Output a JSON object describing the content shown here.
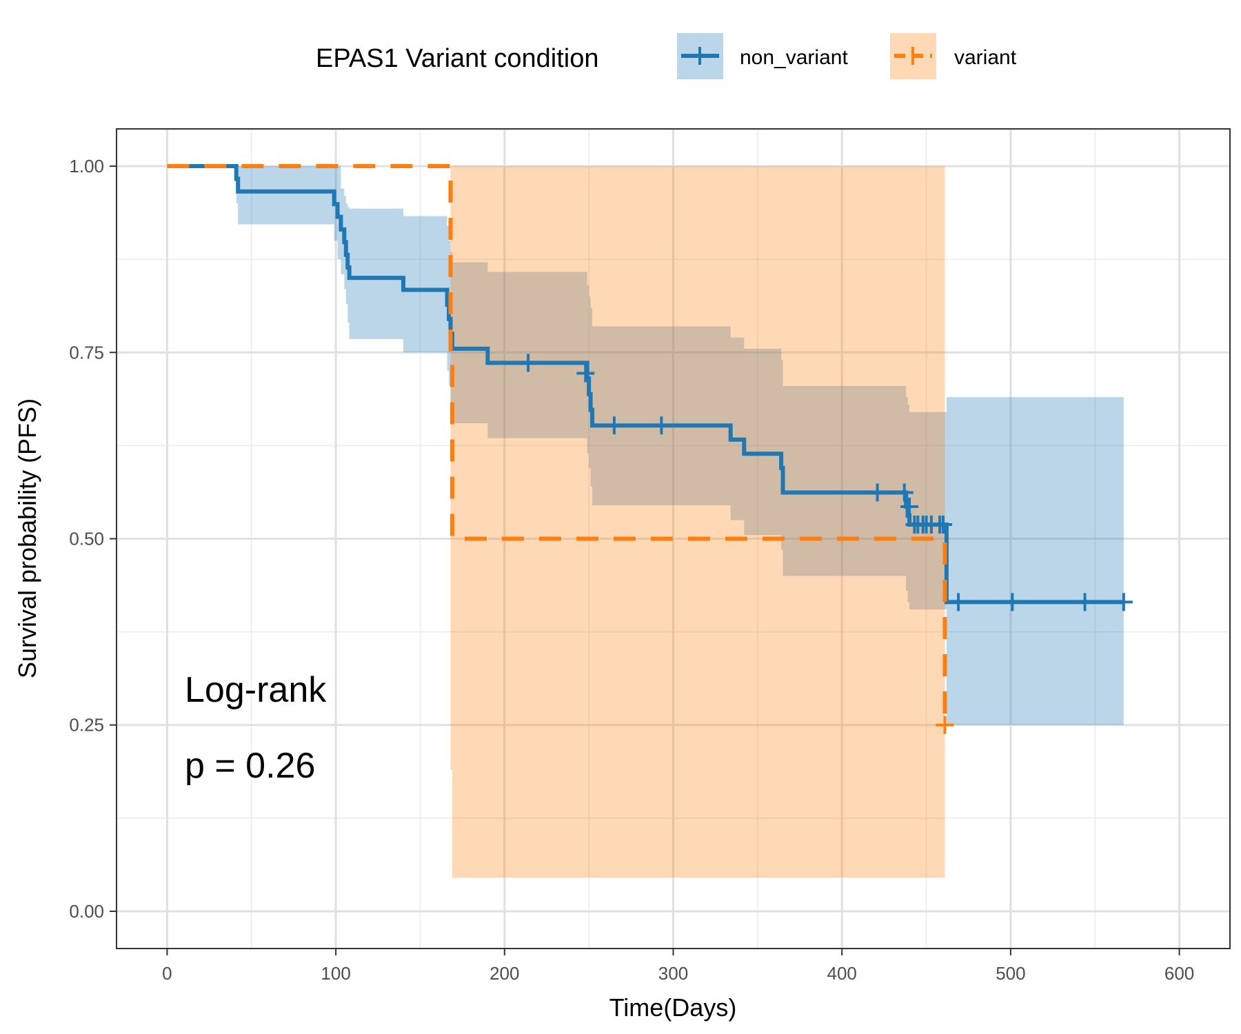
{
  "chart_data": {
    "type": "line",
    "subtype": "kaplan-meier",
    "xlabel": "Time(Days)",
    "ylabel": "Survival probability (PFS)",
    "xlim": [
      -30,
      630
    ],
    "ylim": [
      -0.05,
      1.05
    ],
    "x_ticks": [
      0,
      100,
      200,
      300,
      400,
      500,
      600
    ],
    "x_tick_labels": [
      "0",
      "100",
      "200",
      "300",
      "400",
      "500",
      "600"
    ],
    "y_ticks": [
      0,
      0.25,
      0.5,
      0.75,
      1.0
    ],
    "y_tick_labels": [
      "0.00",
      "0.25",
      "0.50",
      "0.75",
      "1.00"
    ],
    "grid": true,
    "legend": {
      "title": "EPAS1 Variant condition",
      "placement": "top",
      "entries": [
        "non_variant",
        "variant"
      ]
    },
    "annotations": [
      "Log-rank",
      "p = 0.26"
    ],
    "series": [
      {
        "name": "non_variant",
        "color": "#1f77b4",
        "line_style": "solid",
        "x": [
          0,
          40,
          41,
          42,
          97,
          99,
          101,
          103,
          105,
          106,
          107,
          108,
          140,
          165,
          166,
          167,
          168,
          169,
          190,
          247,
          249,
          250,
          251,
          252,
          330,
          334,
          342,
          362,
          364,
          365,
          437,
          438,
          439,
          440,
          441,
          442,
          461,
          462,
          567
        ],
        "y": [
          1.0,
          1.0,
          0.983,
          0.966,
          0.966,
          0.949,
          0.932,
          0.915,
          0.898,
          0.881,
          0.864,
          0.85,
          0.834,
          0.834,
          0.814,
          0.795,
          0.775,
          0.755,
          0.736,
          0.736,
          0.715,
          0.694,
          0.673,
          0.652,
          0.652,
          0.633,
          0.614,
          0.614,
          0.595,
          0.562,
          0.562,
          0.543,
          0.531,
          0.519,
          0.519,
          0.519,
          0.519,
          0.415,
          0.415
        ],
        "ci_x": [
          0,
          40,
          41,
          42,
          97,
          99,
          101,
          103,
          105,
          106,
          107,
          108,
          140,
          165,
          166,
          167,
          168,
          169,
          190,
          247,
          249,
          250,
          251,
          252,
          330,
          334,
          342,
          362,
          364,
          365,
          437,
          438,
          439,
          440,
          441,
          442,
          461,
          462,
          567
        ],
        "ci_upper": [
          1.0,
          1.0,
          1.0,
          1.0,
          1.0,
          1.0,
          1.0,
          0.97,
          0.96,
          0.95,
          0.945,
          0.943,
          0.933,
          0.933,
          0.92,
          0.9,
          0.885,
          0.871,
          0.858,
          0.858,
          0.84,
          0.825,
          0.81,
          0.785,
          0.785,
          0.77,
          0.755,
          0.755,
          0.74,
          0.705,
          0.705,
          0.69,
          0.68,
          0.67,
          0.67,
          0.67,
          0.67,
          0.69,
          0.69
        ],
        "ci_lower": [
          1.0,
          1.0,
          0.95,
          0.922,
          0.922,
          0.9,
          0.875,
          0.855,
          0.835,
          0.815,
          0.79,
          0.768,
          0.75,
          0.75,
          0.725,
          0.705,
          0.68,
          0.655,
          0.635,
          0.635,
          0.615,
          0.595,
          0.57,
          0.545,
          0.545,
          0.525,
          0.505,
          0.505,
          0.485,
          0.45,
          0.45,
          0.43,
          0.415,
          0.405,
          0.405,
          0.405,
          0.405,
          0.25,
          0.25
        ],
        "censor_x": [
          214,
          248,
          265,
          293,
          421,
          437,
          440,
          443,
          445,
          448,
          450,
          453,
          458,
          460,
          469,
          501,
          544,
          567
        ],
        "censor_y": [
          0.736,
          0.722,
          0.652,
          0.652,
          0.562,
          0.562,
          0.543,
          0.519,
          0.519,
          0.519,
          0.519,
          0.519,
          0.519,
          0.519,
          0.415,
          0.415,
          0.415,
          0.415
        ]
      },
      {
        "name": "variant",
        "color": "#ff7f0e",
        "line_style": "dashed",
        "x": [
          0,
          166,
          168,
          169,
          461
        ],
        "y": [
          1.0,
          1.0,
          0.75,
          0.5,
          0.25
        ],
        "ci_x": [
          0,
          166,
          168,
          169,
          461
        ],
        "ci_upper": [
          1.0,
          1.0,
          1.0,
          1.0,
          1.0
        ],
        "ci_lower": [
          1.0,
          1.0,
          0.19,
          0.045,
          0.045
        ],
        "censor_x": [
          461
        ],
        "censor_y": [
          0.25
        ]
      }
    ]
  }
}
